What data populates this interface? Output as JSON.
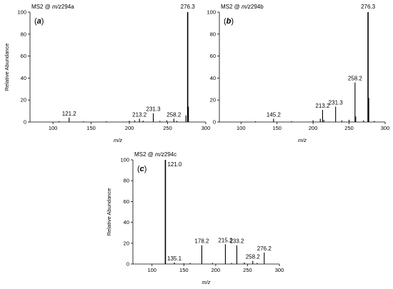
{
  "chart_data": [
    {
      "type": "bar",
      "panel": "a",
      "title_prefix": "MS2 @ ",
      "title_italic": "m/z",
      "title_suffix": "294a",
      "xlabel": "m/z",
      "ylabel": "Relative Abundance",
      "xlim": [
        70,
        300
      ],
      "ylim": [
        0,
        100
      ],
      "xticks": [
        "100",
        "150",
        "200",
        "250",
        "300"
      ],
      "yticks": [
        "0",
        "20",
        "40",
        "60",
        "80",
        "100"
      ],
      "peaks": [
        {
          "x": 121.2,
          "y": 4
        },
        {
          "x": 108,
          "y": 0.8
        },
        {
          "x": 140,
          "y": 0.6
        },
        {
          "x": 170,
          "y": 0.7
        },
        {
          "x": 200,
          "y": 1.2
        },
        {
          "x": 207,
          "y": 1.5
        },
        {
          "x": 213.2,
          "y": 3
        },
        {
          "x": 218,
          "y": 1.2
        },
        {
          "x": 231.3,
          "y": 8
        },
        {
          "x": 240,
          "y": 1
        },
        {
          "x": 249,
          "y": 1.5
        },
        {
          "x": 258.2,
          "y": 3
        },
        {
          "x": 262,
          "y": 1
        },
        {
          "x": 274,
          "y": 6
        },
        {
          "x": 276.3,
          "y": 100
        },
        {
          "x": 277.3,
          "y": 14
        }
      ],
      "annotations": [
        {
          "text": "121.2",
          "x": 121.2,
          "y": 4
        },
        {
          "text": "213.2",
          "x": 213.2,
          "y": 3
        },
        {
          "text": "231.3",
          "x": 231.3,
          "y": 8
        },
        {
          "text": "258.2",
          "x": 258.2,
          "y": 3
        },
        {
          "text": "276.3",
          "x": 276.3,
          "y": 100
        }
      ]
    },
    {
      "type": "bar",
      "panel": "b",
      "title_prefix": "MS2 @ ",
      "title_italic": "m/z",
      "title_suffix": "294b",
      "xlabel": "m/z",
      "ylabel": "",
      "xlim": [
        70,
        300
      ],
      "ylim": [
        0,
        100
      ],
      "xticks": [
        "100",
        "150",
        "200",
        "250",
        "300"
      ],
      "yticks": [
        "0",
        "20",
        "40",
        "60",
        "80",
        "100"
      ],
      "peaks": [
        {
          "x": 145.2,
          "y": 3
        },
        {
          "x": 120,
          "y": 0.7
        },
        {
          "x": 170,
          "y": 0.8
        },
        {
          "x": 200,
          "y": 1.5
        },
        {
          "x": 210,
          "y": 3
        },
        {
          "x": 213.2,
          "y": 11
        },
        {
          "x": 215,
          "y": 2
        },
        {
          "x": 231.3,
          "y": 14
        },
        {
          "x": 240,
          "y": 1.5
        },
        {
          "x": 250,
          "y": 2
        },
        {
          "x": 258.2,
          "y": 36
        },
        {
          "x": 259.2,
          "y": 5
        },
        {
          "x": 270,
          "y": 1.5
        },
        {
          "x": 276.3,
          "y": 100
        },
        {
          "x": 277.3,
          "y": 22
        },
        {
          "x": 285,
          "y": 1
        }
      ],
      "annotations": [
        {
          "text": "145.2",
          "x": 145.2,
          "y": 3
        },
        {
          "text": "213.2",
          "x": 213.2,
          "y": 11
        },
        {
          "text": "231.3",
          "x": 231.3,
          "y": 14
        },
        {
          "text": "258.2",
          "x": 258.2,
          "y": 36
        },
        {
          "text": "276.3",
          "x": 276.3,
          "y": 100
        }
      ]
    },
    {
      "type": "bar",
      "panel": "c",
      "title_prefix": "MS2 @ ",
      "title_italic": "m/z",
      "title_suffix": "294c",
      "xlabel": "m/z",
      "ylabel": "Relative Abundance",
      "xlim": [
        70,
        300
      ],
      "ylim": [
        0,
        100
      ],
      "xticks": [
        "100",
        "150",
        "200",
        "250",
        "300"
      ],
      "yticks": [
        "0",
        "20",
        "40",
        "60",
        "80",
        "100"
      ],
      "peaks": [
        {
          "x": 121.0,
          "y": 100
        },
        {
          "x": 135.1,
          "y": 1.5
        },
        {
          "x": 150,
          "y": 0.7
        },
        {
          "x": 160,
          "y": 1
        },
        {
          "x": 178.2,
          "y": 18
        },
        {
          "x": 195,
          "y": 1
        },
        {
          "x": 215.2,
          "y": 19
        },
        {
          "x": 225,
          "y": 1
        },
        {
          "x": 233.2,
          "y": 18
        },
        {
          "x": 245,
          "y": 1.5
        },
        {
          "x": 258.2,
          "y": 3
        },
        {
          "x": 265,
          "y": 1
        },
        {
          "x": 276.2,
          "y": 11
        }
      ],
      "annotations": [
        {
          "text": "121.0",
          "x": 121.0,
          "y": 100
        },
        {
          "text": "135.1",
          "x": 135.1,
          "y": 1.5
        },
        {
          "text": "178.2",
          "x": 178.2,
          "y": 18
        },
        {
          "text": "215.2",
          "x": 215.2,
          "y": 19
        },
        {
          "text": "233.2",
          "x": 233.2,
          "y": 18
        },
        {
          "text": "258.2",
          "x": 258.2,
          "y": 3
        },
        {
          "text": "276.2",
          "x": 276.2,
          "y": 11
        }
      ]
    }
  ]
}
